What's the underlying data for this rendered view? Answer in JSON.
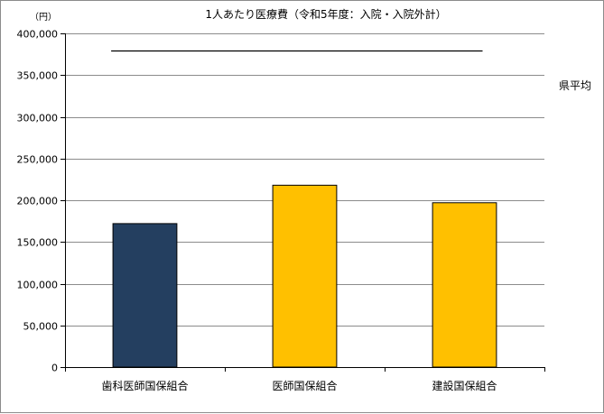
{
  "chart_data": {
    "type": "bar",
    "title": "1人あたり医療費（令和5年度：入院・入院外計）",
    "unit_label": "（円）",
    "xlabel": "",
    "ylabel": "",
    "categories": [
      "歯科医師国保組合",
      "医師国保組合",
      "建設国保組合"
    ],
    "values": [
      172000,
      218000,
      197000
    ],
    "bar_colors": [
      "#243F60",
      "#FFC000",
      "#FFC000"
    ],
    "bar_outline_color": "#000000",
    "reference_line": {
      "label": "県平均",
      "value": 380000,
      "color": "#000000"
    },
    "ylim": [
      0,
      400000
    ],
    "y_ticks": [
      "0",
      "50,000",
      "100,000",
      "150,000",
      "200,000",
      "250,000",
      "300,000",
      "350,000",
      "400,000"
    ],
    "y_tick_values": [
      0,
      50000,
      100000,
      150000,
      200000,
      250000,
      300000,
      350000,
      400000
    ],
    "grid": true,
    "grid_color": "#8c8c8c"
  }
}
